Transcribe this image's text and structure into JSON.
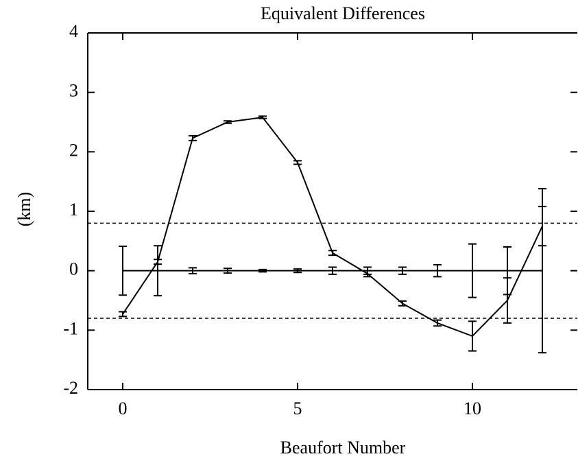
{
  "chart_data": {
    "type": "line",
    "title": "Equivalent Differences",
    "xlabel": "Beaufort Number",
    "ylabel": "(km)",
    "x": [
      0,
      1,
      2,
      3,
      4,
      5,
      6,
      7,
      8,
      9,
      10,
      11,
      12
    ],
    "series": [
      {
        "color": "#000000",
        "values": [
          -0.73,
          0.15,
          2.23,
          2.5,
          2.58,
          1.82,
          0.3,
          -0.05,
          -0.55,
          -0.88,
          -1.1,
          -0.5,
          0.75
        ],
        "errors": [
          0.04,
          0.04,
          0.04,
          0.02,
          0.02,
          0.03,
          0.04,
          0.05,
          0.04,
          0.05,
          0.25,
          0.38,
          0.33
        ]
      },
      {
        "color": "#000000",
        "values": [
          0,
          0,
          0,
          0,
          0,
          0,
          0,
          0,
          0,
          0,
          0,
          0,
          0
        ],
        "errors": [
          0.41,
          0.42,
          0.05,
          0.04,
          0.02,
          0.03,
          0.06,
          0.06,
          0.06,
          0.1,
          0.45,
          0.4,
          1.38
        ]
      }
    ],
    "reference_lines": [
      0.8,
      -0.8
    ],
    "xlim": [
      -1,
      13
    ],
    "xticks": [
      0,
      5,
      10
    ],
    "ylim": [
      -2,
      4
    ],
    "yticks": [
      -2,
      -1,
      0,
      1,
      2,
      3,
      4
    ]
  }
}
